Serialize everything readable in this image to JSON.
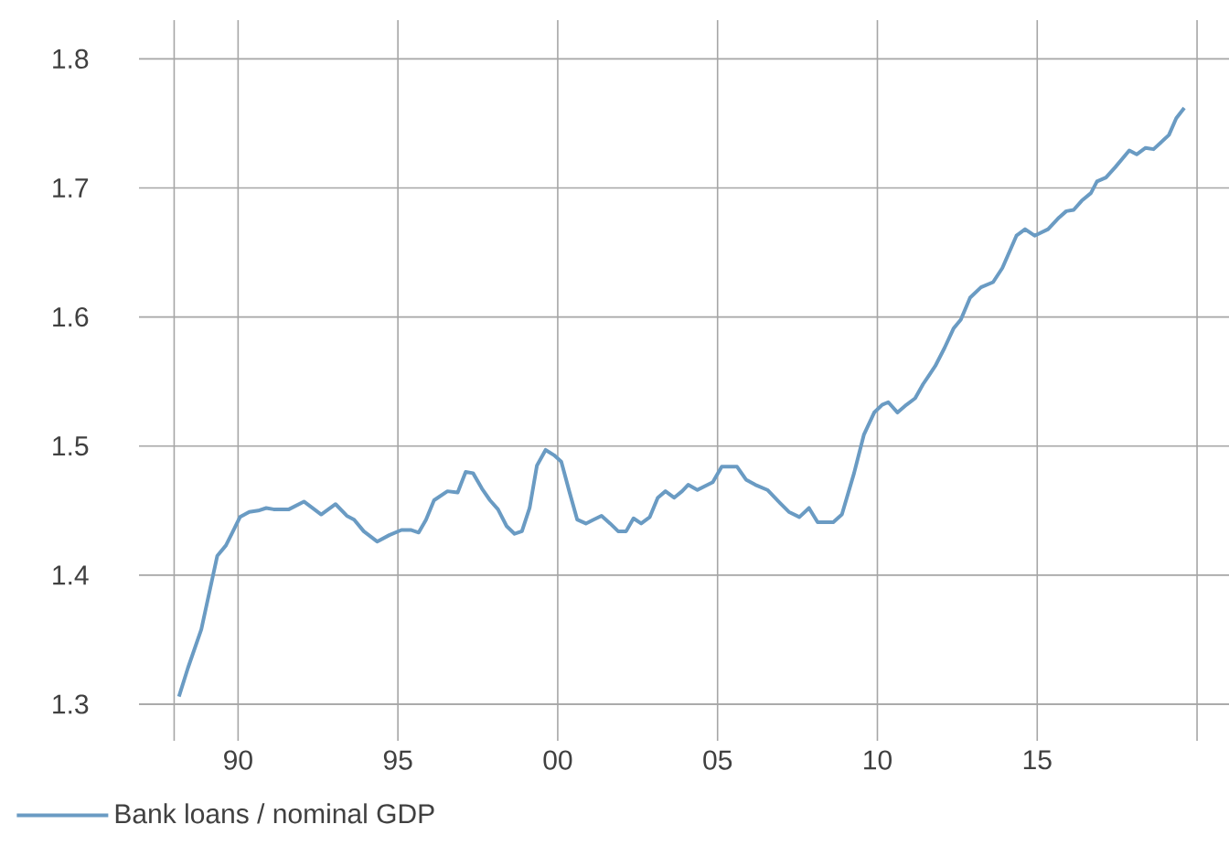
{
  "chart_data": {
    "type": "line",
    "x": [
      1988.15,
      1988.43,
      1988.85,
      1989.35,
      1989.62,
      1990.06,
      1990.35,
      1990.63,
      1990.88,
      1991.11,
      1991.59,
      1992.06,
      1992.6,
      1993.05,
      1993.4,
      1993.63,
      1993.93,
      1994.35,
      1994.73,
      1995.11,
      1995.4,
      1995.65,
      1995.88,
      1996.13,
      1996.55,
      1996.87,
      1997.12,
      1997.35,
      1997.63,
      1997.88,
      1998.13,
      1998.4,
      1998.65,
      1998.88,
      1999.12,
      1999.35,
      1999.62,
      1999.88,
      2000.11,
      2000.36,
      2000.61,
      2000.88,
      2001.12,
      2001.37,
      2001.64,
      2001.89,
      2002.14,
      2002.37,
      2002.61,
      2002.88,
      2003.13,
      2003.37,
      2003.64,
      2003.89,
      2004.08,
      2004.37,
      2004.85,
      2005.13,
      2005.61,
      2005.89,
      2006.18,
      2006.56,
      2006.95,
      2007.23,
      2007.56,
      2007.86,
      2008.13,
      2008.62,
      2008.89,
      2009.27,
      2009.58,
      2009.9,
      2010.15,
      2010.34,
      2010.63,
      2010.91,
      2011.18,
      2011.43,
      2011.81,
      2012.1,
      2012.38,
      2012.61,
      2012.9,
      2013.24,
      2013.62,
      2013.91,
      2014.35,
      2014.62,
      2014.92,
      2015.34,
      2015.68,
      2015.91,
      2016.14,
      2016.39,
      2016.68,
      2016.87,
      2017.15,
      2017.44,
      2017.88,
      2018.11,
      2018.39,
      2018.64,
      2019.12,
      2019.35,
      2019.6
    ],
    "series": [
      {
        "name": "Bank loans / nominal GDP",
        "color": "#6a9bc3",
        "values": [
          1.306,
          1.328,
          1.358,
          1.415,
          1.423,
          1.445,
          1.449,
          1.45,
          1.452,
          1.451,
          1.451,
          1.457,
          1.447,
          1.455,
          1.446,
          1.443,
          1.434,
          1.426,
          1.431,
          1.435,
          1.435,
          1.433,
          1.443,
          1.458,
          1.465,
          1.464,
          1.48,
          1.479,
          1.467,
          1.458,
          1.451,
          1.438,
          1.432,
          1.434,
          1.452,
          1.485,
          1.497,
          1.493,
          1.488,
          1.465,
          1.443,
          1.44,
          1.443,
          1.446,
          1.44,
          1.434,
          1.434,
          1.444,
          1.44,
          1.445,
          1.46,
          1.465,
          1.46,
          1.465,
          1.47,
          1.466,
          1.472,
          1.484,
          1.484,
          1.474,
          1.47,
          1.466,
          1.456,
          1.449,
          1.445,
          1.452,
          1.441,
          1.441,
          1.447,
          1.479,
          1.509,
          1.526,
          1.532,
          1.534,
          1.526,
          1.532,
          1.537,
          1.548,
          1.562,
          1.576,
          1.591,
          1.598,
          1.615,
          1.623,
          1.627,
          1.638,
          1.663,
          1.668,
          1.663,
          1.668,
          1.677,
          1.682,
          1.683,
          1.69,
          1.696,
          1.705,
          1.708,
          1.716,
          1.729,
          1.726,
          1.731,
          1.73,
          1.741,
          1.754,
          1.762
        ]
      }
    ],
    "xlim": [
      1986.9,
      2021
    ],
    "ylim": [
      1.3,
      1.83
    ],
    "xticks": [
      {
        "value": 1988,
        "label": null
      },
      {
        "value": 1990,
        "label": "90"
      },
      {
        "value": 1995,
        "label": "95"
      },
      {
        "value": 2000,
        "label": "00"
      },
      {
        "value": 2005,
        "label": "05"
      },
      {
        "value": 2010,
        "label": "10"
      },
      {
        "value": 2015,
        "label": "15"
      },
      {
        "value": 2020,
        "label": null
      }
    ],
    "yticks": [
      1.3,
      1.4,
      1.5,
      1.6,
      1.7,
      1.8
    ],
    "grid": true,
    "legend": "bottom left",
    "marker": "none",
    "line_style": "solid"
  }
}
